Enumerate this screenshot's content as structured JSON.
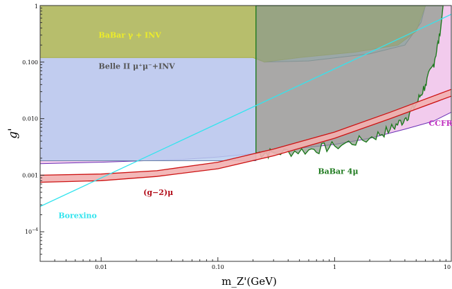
{
  "chart_data": {
    "type": "area",
    "title": "",
    "xlabel": "m_Z'(GeV)",
    "ylabel": "g'",
    "xscale": "log",
    "yscale": "log",
    "xlim": [
      0.003,
      10
    ],
    "ylim": [
      3e-05,
      1
    ],
    "x_ticks": [
      {
        "value": 0.01,
        "label": "0.01"
      },
      {
        "value": 0.1,
        "label": "0.10"
      },
      {
        "value": 1,
        "label": "1"
      },
      {
        "value": 10,
        "label": "10"
      }
    ],
    "y_ticks": [
      {
        "value": 1,
        "label": "1"
      },
      {
        "value": 0.1,
        "label": "0.100"
      },
      {
        "value": 0.01,
        "label": "0.010"
      },
      {
        "value": 0.001,
        "label": "0.001"
      },
      {
        "value": 0.0001,
        "label": "10^-4"
      }
    ],
    "grid": false,
    "legend": "none",
    "regions": [
      {
        "name": "BaBar γ + INV",
        "label_at": [
          0.0095,
          0.27
        ],
        "color": "#a7ae40",
        "fill": "#b5bb55",
        "label_color": "#ecec2a",
        "boundary": [
          [
            0.003,
            0.12
          ],
          [
            0.2,
            0.12
          ],
          [
            0.25,
            0.1
          ],
          [
            0.5,
            0.12
          ],
          [
            1.5,
            0.15
          ],
          [
            3.5,
            0.2
          ],
          [
            5.0,
            0.35
          ],
          [
            6.0,
            1.0
          ],
          [
            0.003,
            1.0
          ]
        ]
      },
      {
        "name": "Belle II μ⁺μ⁻+INV",
        "label_at": [
          0.0095,
          0.076
        ],
        "color": "#6b82a8",
        "fill": "#b8cdef",
        "label_color": "#555555",
        "boundary": [
          [
            0.003,
            0.0018
          ],
          [
            0.212,
            0.0018
          ],
          [
            0.212,
            0.12
          ],
          [
            0.25,
            0.1
          ],
          [
            0.6,
            0.105
          ],
          [
            2.0,
            0.14
          ],
          [
            4.0,
            0.2
          ],
          [
            5.5,
            0.5
          ],
          [
            6.0,
            1.0
          ],
          [
            0.003,
            1.0
          ]
        ]
      },
      {
        "name": "CCFR",
        "label_at": [
          6.4,
          0.0075
        ],
        "color": "#6a2fb5",
        "fill": "#f0c2ea",
        "label_color": "#c030c0",
        "boundary": [
          [
            0.003,
            0.0016
          ],
          [
            0.01,
            0.0017
          ],
          [
            0.05,
            0.0019
          ],
          [
            0.1,
            0.0021
          ],
          [
            0.3,
            0.0026
          ],
          [
            0.5,
            0.003
          ],
          [
            1.0,
            0.0035
          ],
          [
            2.0,
            0.0045
          ],
          [
            4.0,
            0.0065
          ],
          [
            7.0,
            0.009
          ],
          [
            10.0,
            0.013
          ],
          [
            10.0,
            1.0
          ],
          [
            0.003,
            1.0
          ]
        ]
      },
      {
        "name": "BaBar 4μ",
        "label_at": [
          0.72,
          0.00105
        ],
        "color": "#1e7a1e",
        "fill": "#8c9a8c",
        "label_color": "#1e7a1e",
        "boundary": [
          [
            0.212,
            1.0
          ],
          [
            0.212,
            0.0025
          ],
          [
            0.3,
            0.0025
          ],
          [
            0.6,
            0.0028
          ],
          [
            1.0,
            0.0033
          ],
          [
            2.0,
            0.0045
          ],
          [
            3.0,
            0.0065
          ],
          [
            4.0,
            0.01
          ],
          [
            5.0,
            0.018
          ],
          [
            6.0,
            0.04
          ],
          [
            7.0,
            0.09
          ],
          [
            8.0,
            0.3
          ],
          [
            8.5,
            1.0
          ]
        ]
      }
    ],
    "series": [
      {
        "name": "(g−2)μ",
        "label_at": [
          0.023,
          0.00045
        ],
        "color": "#cc1111",
        "label_color": "#b3101c",
        "fill": "#f2b0b0",
        "lower": [
          [
            0.003,
            0.00075
          ],
          [
            0.01,
            0.0008
          ],
          [
            0.03,
            0.00095
          ],
          [
            0.1,
            0.0013
          ],
          [
            0.3,
            0.0022
          ],
          [
            1.0,
            0.0045
          ],
          [
            3.0,
            0.01
          ],
          [
            10.0,
            0.025
          ]
        ],
        "upper": [
          [
            0.003,
            0.001
          ],
          [
            0.01,
            0.00105
          ],
          [
            0.03,
            0.0012
          ],
          [
            0.1,
            0.0017
          ],
          [
            0.3,
            0.0029
          ],
          [
            1.0,
            0.0058
          ],
          [
            3.0,
            0.013
          ],
          [
            10.0,
            0.033
          ]
        ]
      },
      {
        "name": "Borexino",
        "label_at": [
          0.0043,
          0.000175
        ],
        "color": "#33e4ee",
        "label_color": "#33e4ee",
        "points": [
          [
            0.003,
            0.00028
          ],
          [
            10.0,
            0.7
          ]
        ]
      }
    ]
  }
}
